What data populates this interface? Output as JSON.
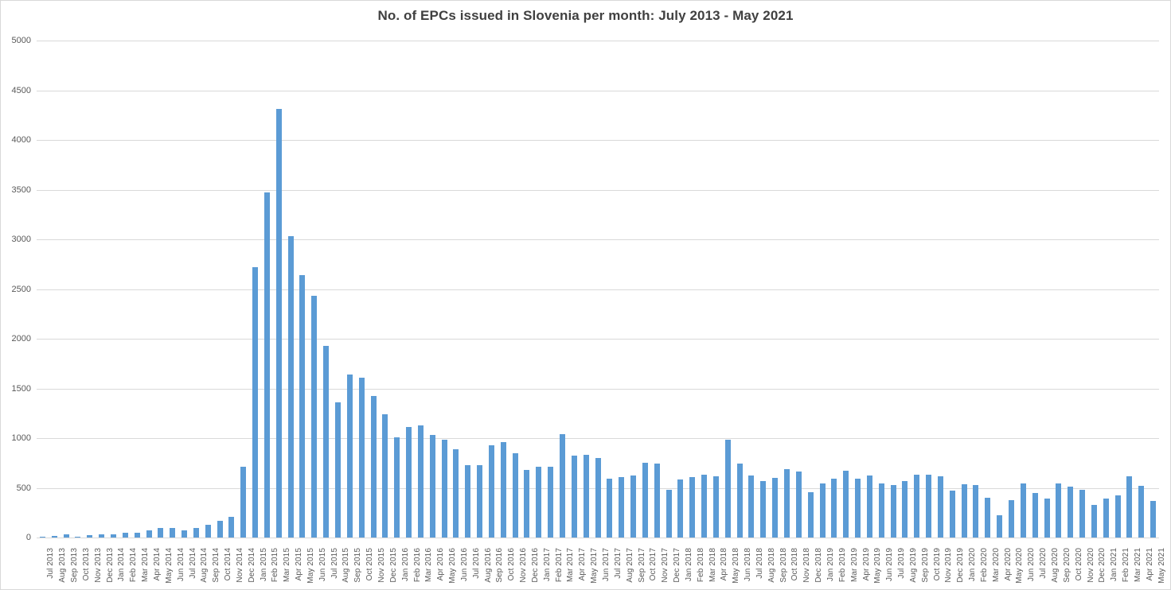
{
  "chart_data": {
    "type": "bar",
    "title": "No. of EPCs issued in Slovenia per month: July 2013 - May 2021",
    "xlabel": "",
    "ylabel": "",
    "ylim": [
      0,
      5000
    ],
    "ytick_step": 500,
    "yticks": [
      0,
      500,
      1000,
      1500,
      2000,
      2500,
      3000,
      3500,
      4000,
      4500,
      5000
    ],
    "grid": true,
    "legend": "none",
    "bar_color": "#5b9bd5",
    "gridline_color": "#d9d9d9",
    "tick_label_color": "#595959",
    "title_color": "#404040",
    "categories": [
      "Jul 2013",
      "Aug 2013",
      "Sep 2013",
      "Oct 2013",
      "Nov 2013",
      "Dec 2013",
      "Jan 2014",
      "Feb 2014",
      "Mar 2014",
      "Apr 2014",
      "May 2014",
      "Jun 2014",
      "Jul 2014",
      "Aug 2014",
      "Sep 2014",
      "Oct 2014",
      "Nov 2014",
      "Dec 2014",
      "Jan 2015",
      "Feb 2015",
      "Mar 2015",
      "Apr 2015",
      "May 2015",
      "Jun 2015",
      "Jul 2015",
      "Aug 2015",
      "Sep 2015",
      "Oct 2015",
      "Nov 2015",
      "Dec 2015",
      "Jan 2016",
      "Feb 2016",
      "Mar 2016",
      "Apr 2016",
      "May 2016",
      "Jun 2016",
      "Jul 2016",
      "Aug 2016",
      "Sep 2016",
      "Oct 2016",
      "Nov 2016",
      "Dec 2016",
      "Jan 2017",
      "Feb 2017",
      "Mar 2017",
      "Apr 2017",
      "May 2017",
      "Jun 2017",
      "Jul 2017",
      "Aug 2017",
      "Sep 2017",
      "Oct 2017",
      "Nov 2017",
      "Dec 2017",
      "Jan 2018",
      "Feb 2018",
      "Mar 2018",
      "Apr 2018",
      "May 2018",
      "Jun 2018",
      "Jul 2018",
      "Aug 2018",
      "Sep 2018",
      "Oct 2018",
      "Nov 2018",
      "Dec 2018",
      "Jan 2019",
      "Feb 2019",
      "Mar 2019",
      "Apr 2019",
      "May 2019",
      "Jun 2019",
      "Jul 2019",
      "Aug 2019",
      "Sep 2019",
      "Oct 2019",
      "Nov 2019",
      "Dec 2019",
      "Jan 2020",
      "Feb 2020",
      "Mar 2020",
      "Apr 2020",
      "May 2020",
      "Jun 2020",
      "Jul 2020",
      "Aug 2020",
      "Sep 2020",
      "Oct 2020",
      "Nov 2020",
      "Dec 2020",
      "Jan 2021",
      "Feb 2021",
      "Mar 2021",
      "Apr 2021",
      "May 2021"
    ],
    "values": [
      10,
      14,
      30,
      8,
      20,
      30,
      32,
      45,
      48,
      70,
      95,
      92,
      72,
      97,
      130,
      170,
      205,
      710,
      2720,
      3475,
      4310,
      3030,
      2640,
      2430,
      1930,
      1360,
      1640,
      1605,
      1420,
      1240,
      1010,
      1115,
      1130,
      1030,
      980,
      885,
      730,
      730,
      930,
      960,
      850,
      680,
      715,
      715,
      1040,
      820,
      830,
      800,
      590,
      605,
      625,
      750,
      740,
      480,
      580,
      610,
      635,
      615,
      980,
      740,
      620,
      565,
      600,
      690,
      660,
      455,
      545,
      590,
      675,
      590,
      620,
      545,
      530,
      570,
      630,
      635,
      615,
      475,
      535,
      525,
      400,
      225,
      375,
      540,
      445,
      395,
      540,
      510,
      480,
      325,
      395,
      420,
      615,
      520,
      370
    ]
  }
}
